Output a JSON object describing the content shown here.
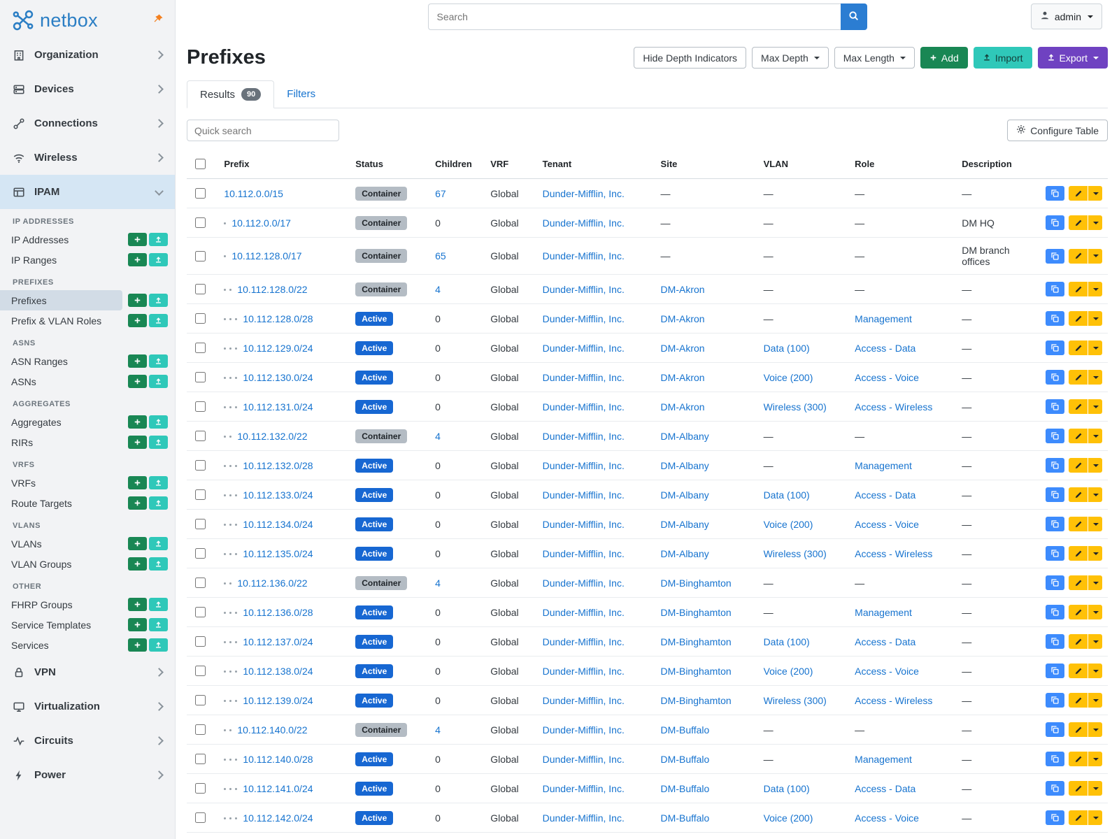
{
  "topbar": {
    "search_placeholder": "Search",
    "user": "admin"
  },
  "sidebar": {
    "brand": "netbox",
    "top_items": [
      {
        "label": "Organization",
        "icon": "building-icon"
      },
      {
        "label": "Devices",
        "icon": "devices-icon"
      },
      {
        "label": "Connections",
        "icon": "connections-icon"
      },
      {
        "label": "Wireless",
        "icon": "wifi-icon"
      }
    ],
    "ipam": {
      "label": "IPAM",
      "icon": "ipam-icon"
    },
    "sections": [
      {
        "title": "IP ADDRESSES",
        "items": [
          {
            "label": "IP Addresses"
          },
          {
            "label": "IP Ranges"
          }
        ]
      },
      {
        "title": "PREFIXES",
        "items": [
          {
            "label": "Prefixes",
            "active": true
          },
          {
            "label": "Prefix & VLAN Roles"
          }
        ]
      },
      {
        "title": "ASNS",
        "items": [
          {
            "label": "ASN Ranges"
          },
          {
            "label": "ASNs"
          }
        ]
      },
      {
        "title": "AGGREGATES",
        "items": [
          {
            "label": "Aggregates"
          },
          {
            "label": "RIRs"
          }
        ]
      },
      {
        "title": "VRFS",
        "items": [
          {
            "label": "VRFs"
          },
          {
            "label": "Route Targets"
          }
        ]
      },
      {
        "title": "VLANS",
        "items": [
          {
            "label": "VLANs"
          },
          {
            "label": "VLAN Groups"
          }
        ]
      },
      {
        "title": "OTHER",
        "items": [
          {
            "label": "FHRP Groups"
          },
          {
            "label": "Service Templates"
          },
          {
            "label": "Services"
          }
        ]
      }
    ],
    "bottom_items": [
      {
        "label": "VPN",
        "icon": "vpn-icon"
      },
      {
        "label": "Virtualization",
        "icon": "virtualization-icon"
      },
      {
        "label": "Circuits",
        "icon": "circuits-icon"
      },
      {
        "label": "Power",
        "icon": "power-icon"
      }
    ]
  },
  "page": {
    "title": "Prefixes",
    "actions": {
      "hide_depth": "Hide Depth Indicators",
      "max_depth": "Max Depth",
      "max_length": "Max Length",
      "add": "Add",
      "import": "Import",
      "export": "Export"
    },
    "tabs": [
      {
        "label": "Results",
        "badge": "90"
      },
      {
        "label": "Filters"
      }
    ],
    "quick_search_placeholder": "Quick search",
    "configure_table": "Configure Table"
  },
  "table": {
    "empty": "—",
    "columns": [
      "Prefix",
      "Status",
      "Children",
      "VRF",
      "Tenant",
      "Site",
      "VLAN",
      "Role",
      "Description"
    ],
    "rows": [
      {
        "depth": 0,
        "prefix": "10.112.0.0/15",
        "status": "Container",
        "children": "67",
        "vrf": "Global",
        "tenant": "Dunder-Mifflin, Inc.",
        "site": null,
        "vlan": null,
        "role": null,
        "description": null
      },
      {
        "depth": 1,
        "prefix": "10.112.0.0/17",
        "status": "Container",
        "children": "0",
        "vrf": "Global",
        "tenant": "Dunder-Mifflin, Inc.",
        "site": null,
        "vlan": null,
        "role": null,
        "description": "DM HQ"
      },
      {
        "depth": 1,
        "prefix": "10.112.128.0/17",
        "status": "Container",
        "children": "65",
        "vrf": "Global",
        "tenant": "Dunder-Mifflin, Inc.",
        "site": null,
        "vlan": null,
        "role": null,
        "description": "DM branch offices"
      },
      {
        "depth": 2,
        "prefix": "10.112.128.0/22",
        "status": "Container",
        "children": "4",
        "vrf": "Global",
        "tenant": "Dunder-Mifflin, Inc.",
        "site": "DM-Akron",
        "vlan": null,
        "role": null,
        "description": null
      },
      {
        "depth": 3,
        "prefix": "10.112.128.0/28",
        "status": "Active",
        "children": "0",
        "vrf": "Global",
        "tenant": "Dunder-Mifflin, Inc.",
        "site": "DM-Akron",
        "vlan": null,
        "role": "Management",
        "description": null
      },
      {
        "depth": 3,
        "prefix": "10.112.129.0/24",
        "status": "Active",
        "children": "0",
        "vrf": "Global",
        "tenant": "Dunder-Mifflin, Inc.",
        "site": "DM-Akron",
        "vlan": "Data (100)",
        "role": "Access - Data",
        "description": null
      },
      {
        "depth": 3,
        "prefix": "10.112.130.0/24",
        "status": "Active",
        "children": "0",
        "vrf": "Global",
        "tenant": "Dunder-Mifflin, Inc.",
        "site": "DM-Akron",
        "vlan": "Voice (200)",
        "role": "Access - Voice",
        "description": null
      },
      {
        "depth": 3,
        "prefix": "10.112.131.0/24",
        "status": "Active",
        "children": "0",
        "vrf": "Global",
        "tenant": "Dunder-Mifflin, Inc.",
        "site": "DM-Akron",
        "vlan": "Wireless (300)",
        "role": "Access - Wireless",
        "description": null
      },
      {
        "depth": 2,
        "prefix": "10.112.132.0/22",
        "status": "Container",
        "children": "4",
        "vrf": "Global",
        "tenant": "Dunder-Mifflin, Inc.",
        "site": "DM-Albany",
        "vlan": null,
        "role": null,
        "description": null
      },
      {
        "depth": 3,
        "prefix": "10.112.132.0/28",
        "status": "Active",
        "children": "0",
        "vrf": "Global",
        "tenant": "Dunder-Mifflin, Inc.",
        "site": "DM-Albany",
        "vlan": null,
        "role": "Management",
        "description": null
      },
      {
        "depth": 3,
        "prefix": "10.112.133.0/24",
        "status": "Active",
        "children": "0",
        "vrf": "Global",
        "tenant": "Dunder-Mifflin, Inc.",
        "site": "DM-Albany",
        "vlan": "Data (100)",
        "role": "Access - Data",
        "description": null
      },
      {
        "depth": 3,
        "prefix": "10.112.134.0/24",
        "status": "Active",
        "children": "0",
        "vrf": "Global",
        "tenant": "Dunder-Mifflin, Inc.",
        "site": "DM-Albany",
        "vlan": "Voice (200)",
        "role": "Access - Voice",
        "description": null
      },
      {
        "depth": 3,
        "prefix": "10.112.135.0/24",
        "status": "Active",
        "children": "0",
        "vrf": "Global",
        "tenant": "Dunder-Mifflin, Inc.",
        "site": "DM-Albany",
        "vlan": "Wireless (300)",
        "role": "Access - Wireless",
        "description": null
      },
      {
        "depth": 2,
        "prefix": "10.112.136.0/22",
        "status": "Container",
        "children": "4",
        "vrf": "Global",
        "tenant": "Dunder-Mifflin, Inc.",
        "site": "DM-Binghamton",
        "vlan": null,
        "role": null,
        "description": null
      },
      {
        "depth": 3,
        "prefix": "10.112.136.0/28",
        "status": "Active",
        "children": "0",
        "vrf": "Global",
        "tenant": "Dunder-Mifflin, Inc.",
        "site": "DM-Binghamton",
        "vlan": null,
        "role": "Management",
        "description": null
      },
      {
        "depth": 3,
        "prefix": "10.112.137.0/24",
        "status": "Active",
        "children": "0",
        "vrf": "Global",
        "tenant": "Dunder-Mifflin, Inc.",
        "site": "DM-Binghamton",
        "vlan": "Data (100)",
        "role": "Access - Data",
        "description": null
      },
      {
        "depth": 3,
        "prefix": "10.112.138.0/24",
        "status": "Active",
        "children": "0",
        "vrf": "Global",
        "tenant": "Dunder-Mifflin, Inc.",
        "site": "DM-Binghamton",
        "vlan": "Voice (200)",
        "role": "Access - Voice",
        "description": null
      },
      {
        "depth": 3,
        "prefix": "10.112.139.0/24",
        "status": "Active",
        "children": "0",
        "vrf": "Global",
        "tenant": "Dunder-Mifflin, Inc.",
        "site": "DM-Binghamton",
        "vlan": "Wireless (300)",
        "role": "Access - Wireless",
        "description": null
      },
      {
        "depth": 2,
        "prefix": "10.112.140.0/22",
        "status": "Container",
        "children": "4",
        "vrf": "Global",
        "tenant": "Dunder-Mifflin, Inc.",
        "site": "DM-Buffalo",
        "vlan": null,
        "role": null,
        "description": null
      },
      {
        "depth": 3,
        "prefix": "10.112.140.0/28",
        "status": "Active",
        "children": "0",
        "vrf": "Global",
        "tenant": "Dunder-Mifflin, Inc.",
        "site": "DM-Buffalo",
        "vlan": null,
        "role": "Management",
        "description": null
      },
      {
        "depth": 3,
        "prefix": "10.112.141.0/24",
        "status": "Active",
        "children": "0",
        "vrf": "Global",
        "tenant": "Dunder-Mifflin, Inc.",
        "site": "DM-Buffalo",
        "vlan": "Data (100)",
        "role": "Access - Data",
        "description": null
      },
      {
        "depth": 3,
        "prefix": "10.112.142.0/24",
        "status": "Active",
        "children": "0",
        "vrf": "Global",
        "tenant": "Dunder-Mifflin, Inc.",
        "site": "DM-Buffalo",
        "vlan": "Voice (200)",
        "role": "Access - Voice",
        "description": null
      }
    ]
  }
}
